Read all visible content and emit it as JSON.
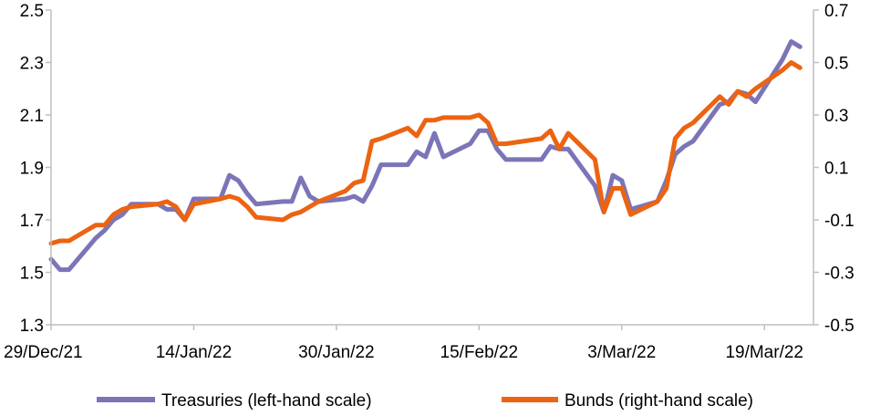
{
  "chart_data": {
    "type": "line",
    "x_ticks": [
      "29/Dec/21",
      "14/Jan/22",
      "30/Jan/22",
      "15/Feb/22",
      "3/Mar/22",
      "19/Mar/22"
    ],
    "y_left": {
      "min": 1.3,
      "max": 2.5,
      "ticks": [
        "1.3",
        "1.5",
        "1.7",
        "1.9",
        "2.1",
        "2.3",
        "2.5"
      ]
    },
    "y_right": {
      "min": -0.5,
      "max": 0.7,
      "ticks": [
        "-0.5",
        "-0.3",
        "-0.1",
        "0.1",
        "0.3",
        "0.5",
        "0.7"
      ]
    },
    "grid": false,
    "legend_position": "bottom",
    "series": [
      {
        "name": "Treasuries (left-hand scale)",
        "axis": "left",
        "color": "#7b75b8",
        "points": [
          [
            "2021-12-29",
            1.55
          ],
          [
            "2021-12-30",
            1.51
          ],
          [
            "2021-12-31",
            1.51
          ],
          [
            "2022-01-03",
            1.63
          ],
          [
            "2022-01-04",
            1.66
          ],
          [
            "2022-01-05",
            1.7
          ],
          [
            "2022-01-06",
            1.72
          ],
          [
            "2022-01-07",
            1.76
          ],
          [
            "2022-01-10",
            1.76
          ],
          [
            "2022-01-11",
            1.74
          ],
          [
            "2022-01-12",
            1.74
          ],
          [
            "2022-01-13",
            1.7
          ],
          [
            "2022-01-14",
            1.78
          ],
          [
            "2022-01-17",
            1.78
          ],
          [
            "2022-01-18",
            1.87
          ],
          [
            "2022-01-19",
            1.85
          ],
          [
            "2022-01-20",
            1.8
          ],
          [
            "2022-01-21",
            1.76
          ],
          [
            "2022-01-24",
            1.77
          ],
          [
            "2022-01-25",
            1.77
          ],
          [
            "2022-01-26",
            1.86
          ],
          [
            "2022-01-27",
            1.79
          ],
          [
            "2022-01-28",
            1.77
          ],
          [
            "2022-01-31",
            1.78
          ],
          [
            "2022-02-01",
            1.79
          ],
          [
            "2022-02-02",
            1.77
          ],
          [
            "2022-02-03",
            1.83
          ],
          [
            "2022-02-04",
            1.91
          ],
          [
            "2022-02-07",
            1.91
          ],
          [
            "2022-02-08",
            1.96
          ],
          [
            "2022-02-09",
            1.94
          ],
          [
            "2022-02-10",
            2.03
          ],
          [
            "2022-02-11",
            1.94
          ],
          [
            "2022-02-14",
            1.99
          ],
          [
            "2022-02-15",
            2.04
          ],
          [
            "2022-02-16",
            2.04
          ],
          [
            "2022-02-17",
            1.97
          ],
          [
            "2022-02-18",
            1.93
          ],
          [
            "2022-02-22",
            1.93
          ],
          [
            "2022-02-23",
            1.98
          ],
          [
            "2022-02-24",
            1.97
          ],
          [
            "2022-02-25",
            1.97
          ],
          [
            "2022-02-28",
            1.83
          ],
          [
            "2022-03-01",
            1.73
          ],
          [
            "2022-03-02",
            1.87
          ],
          [
            "2022-03-03",
            1.85
          ],
          [
            "2022-03-04",
            1.74
          ],
          [
            "2022-03-07",
            1.77
          ],
          [
            "2022-03-08",
            1.85
          ],
          [
            "2022-03-09",
            1.95
          ],
          [
            "2022-03-10",
            1.98
          ],
          [
            "2022-03-11",
            2.0
          ],
          [
            "2022-03-14",
            2.14
          ],
          [
            "2022-03-15",
            2.15
          ],
          [
            "2022-03-16",
            2.19
          ],
          [
            "2022-03-17",
            2.18
          ],
          [
            "2022-03-18",
            2.15
          ],
          [
            "2022-03-21",
            2.31
          ],
          [
            "2022-03-22",
            2.38
          ],
          [
            "2022-03-23",
            2.36
          ]
        ]
      },
      {
        "name": "Bunds (right-hand scale)",
        "axis": "right",
        "color": "#ec6312",
        "points": [
          [
            "2021-12-29",
            -0.19
          ],
          [
            "2021-12-30",
            -0.18
          ],
          [
            "2021-12-31",
            -0.18
          ],
          [
            "2022-01-03",
            -0.12
          ],
          [
            "2022-01-04",
            -0.12
          ],
          [
            "2022-01-05",
            -0.08
          ],
          [
            "2022-01-06",
            -0.06
          ],
          [
            "2022-01-07",
            -0.05
          ],
          [
            "2022-01-10",
            -0.04
          ],
          [
            "2022-01-11",
            -0.03
          ],
          [
            "2022-01-12",
            -0.05
          ],
          [
            "2022-01-13",
            -0.1
          ],
          [
            "2022-01-14",
            -0.04
          ],
          [
            "2022-01-17",
            -0.02
          ],
          [
            "2022-01-18",
            -0.01
          ],
          [
            "2022-01-19",
            -0.02
          ],
          [
            "2022-01-20",
            -0.05
          ],
          [
            "2022-01-21",
            -0.09
          ],
          [
            "2022-01-24",
            -0.1
          ],
          [
            "2022-01-25",
            -0.08
          ],
          [
            "2022-01-26",
            -0.07
          ],
          [
            "2022-01-27",
            -0.05
          ],
          [
            "2022-01-28",
            -0.03
          ],
          [
            "2022-01-31",
            0.01
          ],
          [
            "2022-02-01",
            0.04
          ],
          [
            "2022-02-02",
            0.05
          ],
          [
            "2022-02-03",
            0.2
          ],
          [
            "2022-02-04",
            0.21
          ],
          [
            "2022-02-07",
            0.25
          ],
          [
            "2022-02-08",
            0.22
          ],
          [
            "2022-02-09",
            0.28
          ],
          [
            "2022-02-10",
            0.28
          ],
          [
            "2022-02-11",
            0.29
          ],
          [
            "2022-02-14",
            0.29
          ],
          [
            "2022-02-15",
            0.3
          ],
          [
            "2022-02-16",
            0.27
          ],
          [
            "2022-02-17",
            0.19
          ],
          [
            "2022-02-18",
            0.19
          ],
          [
            "2022-02-22",
            0.21
          ],
          [
            "2022-02-23",
            0.24
          ],
          [
            "2022-02-24",
            0.17
          ],
          [
            "2022-02-25",
            0.23
          ],
          [
            "2022-02-28",
            0.13
          ],
          [
            "2022-03-01",
            -0.07
          ],
          [
            "2022-03-02",
            0.02
          ],
          [
            "2022-03-03",
            0.02
          ],
          [
            "2022-03-04",
            -0.08
          ],
          [
            "2022-03-07",
            -0.03
          ],
          [
            "2022-03-08",
            0.02
          ],
          [
            "2022-03-09",
            0.21
          ],
          [
            "2022-03-10",
            0.25
          ],
          [
            "2022-03-11",
            0.27
          ],
          [
            "2022-03-14",
            0.37
          ],
          [
            "2022-03-15",
            0.34
          ],
          [
            "2022-03-16",
            0.39
          ],
          [
            "2022-03-17",
            0.37
          ],
          [
            "2022-03-18",
            0.4
          ],
          [
            "2022-03-21",
            0.47
          ],
          [
            "2022-03-22",
            0.5
          ],
          [
            "2022-03-23",
            0.48
          ]
        ]
      }
    ]
  }
}
